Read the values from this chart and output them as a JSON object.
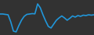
{
  "x": [
    0,
    1,
    2,
    3,
    4,
    5,
    6,
    7,
    8,
    9,
    10,
    11,
    12,
    13,
    14,
    15,
    16,
    17,
    18,
    19,
    20,
    21,
    22,
    23,
    24,
    25,
    26,
    27,
    28,
    29,
    30,
    31,
    32,
    33,
    34,
    35
  ],
  "y": [
    0.7,
    0.7,
    0.65,
    0.6,
    -0.3,
    -1.5,
    -1.6,
    -0.8,
    -0.1,
    0.4,
    0.65,
    0.7,
    0.75,
    0.72,
    2.0,
    1.5,
    0.6,
    -0.2,
    -0.9,
    -1.1,
    -0.6,
    -0.1,
    0.2,
    0.45,
    0.2,
    -0.1,
    0.15,
    0.45,
    0.3,
    0.5,
    0.4,
    0.55,
    0.5,
    0.6,
    0.55,
    0.6
  ],
  "line_color": "#2196d9",
  "line_width": 1.2,
  "background_color": "#323232",
  "ylim": [
    -2.0,
    2.5
  ],
  "xlim": [
    0,
    35
  ]
}
